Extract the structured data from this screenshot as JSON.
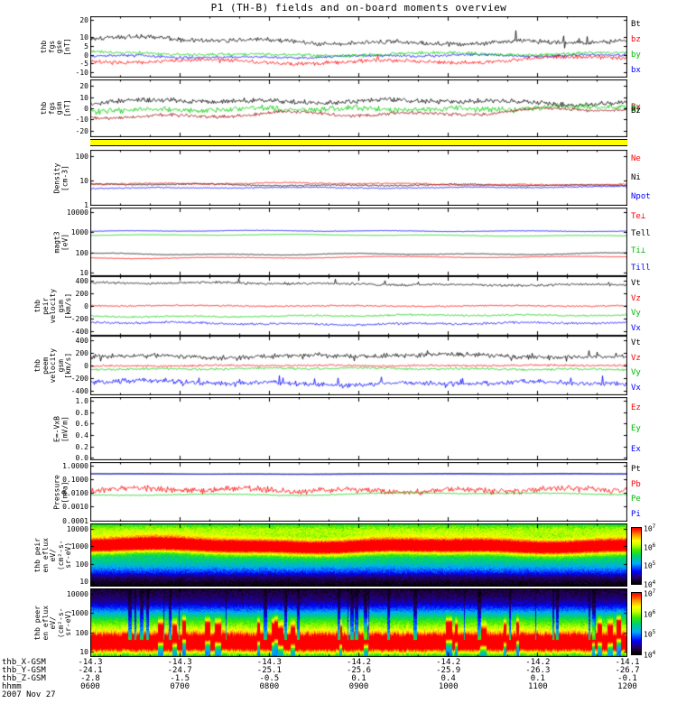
{
  "title": "P1 (TH-B) fields and on-board moments overview",
  "date_label": "2007 Nov 27",
  "xaxis": {
    "rows": [
      {
        "label": "thb_X-GSM",
        "values": [
          "-14.3",
          "-14.3",
          "-14.3",
          "-14.2",
          "-14.2",
          "-14.2",
          "-14.1"
        ]
      },
      {
        "label": "thb_Y-GSM",
        "values": [
          "-24.1",
          "-24.7",
          "-25.1",
          "-25.6",
          "-25.9",
          "-26.3",
          "-26.7"
        ]
      },
      {
        "label": "thb_Z-GSM",
        "values": [
          "-2.8",
          "-1.5",
          "-0.5",
          "0.1",
          "0.4",
          "0.1",
          "-0.1"
        ]
      },
      {
        "label": "hhmm",
        "values": [
          "0600",
          "0700",
          "0800",
          "0900",
          "1000",
          "1100",
          "1200"
        ]
      }
    ]
  },
  "chart_data": [
    {
      "id": "fgs_gse",
      "type": "line",
      "scale": "linear",
      "ylim": [
        -13,
        22
      ],
      "left_label": [
        "thb",
        "fgs",
        "gse",
        "[nT]"
      ],
      "yticks": [
        20,
        10,
        5,
        0,
        -5,
        -10
      ],
      "legend": [
        {
          "t": "Bt",
          "c": "#000000"
        },
        {
          "t": "bz",
          "c": "#ff0000"
        },
        {
          "t": "by",
          "c": "#00bb00"
        },
        {
          "t": "bx",
          "c": "#0000ff"
        }
      ],
      "series": [
        {
          "n": "bx",
          "c": "#0000ff",
          "base": -0.5,
          "wander": 1.2,
          "noise": 0.9,
          "seed": 3
        },
        {
          "n": "by",
          "c": "#00cc00",
          "base": 1,
          "wander": 1.6,
          "noise": 1.1,
          "seed": 5
        },
        {
          "n": "bz",
          "c": "#ff0000",
          "base": -3,
          "wander": 2.6,
          "noise": 1.3,
          "seed": 7,
          "spike": {
            "p": 0.012,
            "a": 3
          }
        },
        {
          "n": "Bt",
          "c": "#000000",
          "base": 8,
          "wander": 2.2,
          "noise": 1.6,
          "seed": 9,
          "spike": {
            "p": 0.015,
            "a": 4
          }
        }
      ]
    },
    {
      "id": "fgs_gsm",
      "type": "line",
      "scale": "linear",
      "ylim": [
        -26,
        26
      ],
      "left_label": [
        "thb",
        "fgs",
        "gsm",
        "[nT]"
      ],
      "yticks": [
        20,
        10,
        0,
        -10,
        -20
      ],
      "legend_overlap": true,
      "legend": [
        {
          "t": "Bx",
          "c": "#990000"
        },
        {
          "t": "By",
          "c": "#00bb00"
        },
        {
          "t": "Bz",
          "c": "#000000"
        }
      ],
      "series": [
        {
          "n": "By",
          "c": "#00cc00",
          "base": 0,
          "wander": 2.5,
          "noise": 3.2,
          "seed": 11
        },
        {
          "n": "Bz",
          "c": "#000000",
          "base": 5,
          "wander": 3,
          "noise": 2.6,
          "seed": 13
        },
        {
          "n": "Bx",
          "c": "#990000",
          "base": -4,
          "wander": 4.5,
          "noise": 1.8,
          "seed": 15
        }
      ]
    },
    {
      "id": "flag",
      "type": "flag",
      "color": "#ffff00"
    },
    {
      "id": "density",
      "type": "line",
      "scale": "log",
      "ylim": [
        0.9,
        180
      ],
      "left_label": [
        "Density",
        "[cm-3]"
      ],
      "yticks": [
        100,
        10,
        1
      ],
      "legend": [
        {
          "t": "Ne",
          "c": "#ff0000"
        },
        {
          "t": "Ni",
          "c": "#000000"
        },
        {
          "t": "Npot",
          "c": "#0000ff"
        }
      ],
      "series": [
        {
          "n": "Npot",
          "c": "#0000ff",
          "log": true,
          "base": 5,
          "wander": 0.05,
          "noise": 0.03,
          "seed": 17
        },
        {
          "n": "Ni",
          "c": "#000000",
          "log": true,
          "base": 6.8,
          "wander": 0.06,
          "noise": 0.035,
          "seed": 19
        },
        {
          "n": "Ne",
          "c": "#ff0000",
          "log": true,
          "base": 7,
          "wander": 0.06,
          "noise": 0.04,
          "seed": 21
        }
      ]
    },
    {
      "id": "magt3",
      "type": "line",
      "scale": "log",
      "ylim": [
        7,
        16000
      ],
      "left_label": [
        "magt3",
        "[eV]"
      ],
      "yticks": [
        10000,
        1000,
        100,
        10
      ],
      "legend": [
        {
          "t": "Te⊥",
          "c": "#ff0000"
        },
        {
          "t": "Tell",
          "c": "#000000"
        },
        {
          "t": "Ti⊥",
          "c": "#00bb00"
        },
        {
          "t": "Till",
          "c": "#0000ff"
        }
      ],
      "series": [
        {
          "n": "Till",
          "c": "#0000ff",
          "log": true,
          "base": 1100,
          "wander": 0.05,
          "noise": 0.015,
          "seed": 23
        },
        {
          "n": "Ti⊥",
          "c": "#00cc00",
          "log": true,
          "base": 700,
          "wander": 0.05,
          "noise": 0.015,
          "seed": 25
        },
        {
          "n": "Tell",
          "c": "#000000",
          "log": true,
          "base": 90,
          "wander": 0.07,
          "noise": 0.02,
          "seed": 27
        },
        {
          "n": "Te⊥",
          "c": "#ff0000",
          "log": true,
          "base": 62,
          "wander": 0.08,
          "noise": 0.02,
          "seed": 29
        }
      ]
    },
    {
      "id": "vel_ion",
      "type": "line",
      "scale": "linear",
      "ylim": [
        -470,
        470
      ],
      "left_label": [
        "thb",
        "peir",
        "velocity",
        "gsm",
        "[km/s]"
      ],
      "yticks": [
        400,
        200,
        0,
        -200,
        -400
      ],
      "legend": [
        {
          "t": "Vt",
          "c": "#000000"
        },
        {
          "t": "Vz",
          "c": "#ff0000"
        },
        {
          "t": "Vy",
          "c": "#00bb00"
        },
        {
          "t": "Vx",
          "c": "#0000ff"
        }
      ],
      "series": [
        {
          "n": "Vx",
          "c": "#0000ff",
          "base": -270,
          "wander": 25,
          "noise": 20,
          "seed": 31
        },
        {
          "n": "Vy",
          "c": "#00cc00",
          "base": -150,
          "wander": 22,
          "noise": 16,
          "seed": 33
        },
        {
          "n": "Vz",
          "c": "#ff0000",
          "base": -5,
          "wander": 15,
          "noise": 14,
          "seed": 35
        },
        {
          "n": "Vt",
          "c": "#000000",
          "base": 350,
          "wander": 25,
          "noise": 22,
          "seed": 37,
          "spike": {
            "p": 0.03,
            "a": 45
          }
        }
      ]
    },
    {
      "id": "vel_elec",
      "type": "line",
      "scale": "linear",
      "ylim": [
        -470,
        470
      ],
      "left_label": [
        "thb",
        "peem",
        "velocity",
        "gsm",
        "[km/s]"
      ],
      "yticks": [
        400,
        200,
        0,
        -200,
        -400
      ],
      "legend": [
        {
          "t": "Vt",
          "c": "#000000"
        },
        {
          "t": "Vz",
          "c": "#ff0000"
        },
        {
          "t": "Vy",
          "c": "#00bb00"
        },
        {
          "t": "Vx",
          "c": "#0000ff"
        }
      ],
      "series": [
        {
          "n": "Vx",
          "c": "#0000ff",
          "base": -260,
          "wander": 45,
          "noise": 45,
          "seed": 39,
          "spike": {
            "p": 0.04,
            "a": 80
          }
        },
        {
          "n": "Vy",
          "c": "#00cc00",
          "base": -60,
          "wander": 20,
          "noise": 22,
          "seed": 40
        },
        {
          "n": "Vz",
          "c": "#ff0000",
          "base": -5,
          "wander": 12,
          "noise": 18,
          "seed": 42
        },
        {
          "n": "Vt",
          "c": "#000000",
          "base": 130,
          "wander": 45,
          "noise": 45,
          "seed": 44,
          "spike": {
            "p": 0.05,
            "a": 90
          }
        }
      ]
    },
    {
      "id": "efield",
      "type": "line",
      "scale": "linear",
      "ylim": [
        -0.04,
        1.06
      ],
      "left_label": [
        "E=-VxB",
        "[mV/m]"
      ],
      "yticks": [
        "1.0",
        "0.8",
        "0.6",
        "0.4",
        "0.2",
        "0.0"
      ],
      "legend": [
        {
          "t": "Ez",
          "c": "#ff0000"
        },
        {
          "t": "Ey",
          "c": "#00bb00"
        },
        {
          "t": "Ex",
          "c": "#0000ff"
        }
      ],
      "series": []
    },
    {
      "id": "pressure",
      "type": "line",
      "scale": "log",
      "ylim": [
        8e-05,
        1.8
      ],
      "left_label": [
        "Pressure",
        "[nPa]"
      ],
      "yticks": [
        {
          "v": 1,
          "t": "1.0000"
        },
        {
          "v": 0.1,
          "t": "0.1000"
        },
        {
          "v": 0.01,
          "t": "0.0100"
        },
        {
          "v": 0.001,
          "t": "0.0010"
        },
        {
          "v": 0.0001,
          "t": "0.0001"
        }
      ],
      "legend": [
        {
          "t": "Pt",
          "c": "#000000"
        },
        {
          "t": "Pb",
          "c": "#ff0000"
        },
        {
          "t": "Pe",
          "c": "#00bb00"
        },
        {
          "t": "Pi",
          "c": "#0000ff"
        }
      ],
      "series": [
        {
          "n": "Pb",
          "c": "#ff0000",
          "log": true,
          "base": 0.012,
          "wander": 0.3,
          "noise": 0.28,
          "seed": 41
        },
        {
          "n": "Pe",
          "c": "#00cc00",
          "log": true,
          "base": 0.008,
          "wander": 0.12,
          "noise": 0.05,
          "seed": 43
        },
        {
          "n": "Pt",
          "c": "#000000",
          "log": true,
          "base": 0.26,
          "wander": 0.03,
          "noise": 0.012,
          "seed": 45
        },
        {
          "n": "Pi",
          "c": "#0000ff",
          "log": true,
          "base": 0.24,
          "wander": 0.03,
          "noise": 0.012,
          "seed": 47
        }
      ]
    },
    {
      "id": "spec_ion",
      "type": "spectrogram",
      "scale": "log",
      "ylim": [
        5,
        20000
      ],
      "left_label": [
        "thb peir",
        "en eflux",
        "eV/",
        "(cm²-s-",
        "sr-eV)"
      ],
      "yticks": [
        10000,
        1000,
        100,
        10
      ],
      "colorbar": [
        "10^7",
        "10^6",
        "10^5",
        "10^4"
      ],
      "params": {
        "bands": [
          {
            "c": 3.02,
            "s": 0.3,
            "a": 0.97,
            "cw": 0.2
          },
          {
            "c": 3.9,
            "s": 0.5,
            "a": 0.55
          },
          {
            "c": 2.2,
            "s": 0.5,
            "a": 0.33
          }
        ],
        "floor": {
          "base": 0.13,
          "fade": 1.5
        },
        "noise": 0.06
      }
    },
    {
      "id": "spec_elec",
      "type": "spectrogram",
      "scale": "log",
      "ylim": [
        5,
        20000
      ],
      "left_label": [
        "thb peer",
        "en eflux",
        "eV/",
        "(cm²-s-",
        "sr-eV)"
      ],
      "yticks": [
        10000,
        1000,
        100,
        10
      ],
      "colorbar": [
        "10^7",
        "10^6",
        "10^5",
        "10^4"
      ],
      "params": {
        "bands": [
          {
            "c": 1.35,
            "s": 0.4,
            "a": 0.95
          },
          {
            "c": 2.45,
            "s": 0.55,
            "a": 0.4
          }
        ],
        "bg": {
          "b0": 0.38,
          "slope": -0.075
        },
        "stripes": {
          "p": 0.045,
          "factor": 0.45,
          "above": 1.6
        },
        "bumps": true,
        "noise": 0.05
      }
    }
  ]
}
